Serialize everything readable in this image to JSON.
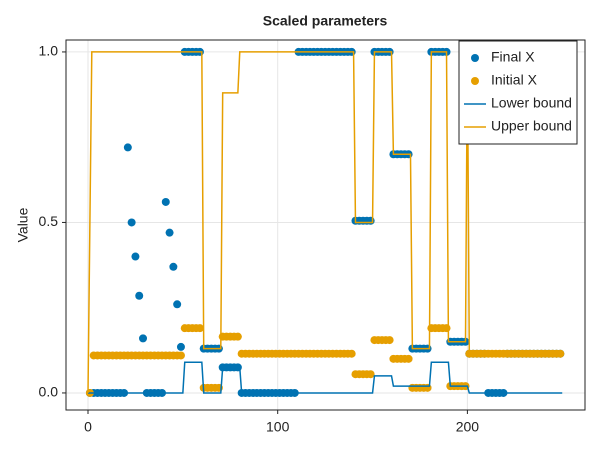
{
  "chart_data": {
    "type": "scatter",
    "title": "Scaled parameters",
    "ylabel": "Value",
    "xlim": [
      -11.6,
      262
    ],
    "ylim": [
      -0.05,
      1.035
    ],
    "xticks": [
      0,
      100,
      200
    ],
    "yticks": [
      {
        "value": 0,
        "label": "0.0"
      },
      {
        "value": 0.5,
        "label": "0.5"
      },
      {
        "value": 1,
        "label": "1.0"
      }
    ],
    "grid": true,
    "legend": "top-right",
    "series": [
      {
        "name": "Final X",
        "type": "scatter",
        "color": "#0072b2",
        "x": [
          1,
          3,
          5,
          7,
          9,
          11,
          13,
          15,
          17,
          19,
          21,
          23,
          25,
          27,
          29,
          31,
          33,
          35,
          37,
          39,
          41,
          43,
          45,
          47,
          49,
          51,
          53,
          55,
          57,
          59,
          61,
          63,
          65,
          67,
          69,
          71,
          73,
          75,
          77,
          79,
          81,
          83,
          85,
          87,
          89,
          91,
          93,
          95,
          97,
          99,
          101,
          103,
          105,
          107,
          109,
          111,
          113,
          115,
          117,
          119,
          121,
          123,
          125,
          127,
          129,
          131,
          133,
          135,
          137,
          139,
          141,
          143,
          145,
          147,
          149,
          151,
          153,
          155,
          157,
          159,
          161,
          163,
          165,
          167,
          169,
          171,
          173,
          175,
          177,
          179,
          181,
          183,
          185,
          187,
          189,
          191,
          193,
          195,
          197,
          199,
          201,
          203,
          205,
          207,
          209,
          211,
          213,
          215,
          217,
          219,
          221,
          223,
          225,
          227,
          229,
          231,
          233,
          235,
          237,
          239,
          241,
          243,
          245,
          247,
          249
        ],
        "values": [
          0,
          0,
          0,
          0,
          0,
          0,
          0,
          0,
          0,
          0,
          0.72,
          0.5,
          0.4,
          0.285,
          0.16,
          0,
          0,
          0,
          0,
          0,
          0.56,
          0.47,
          0.37,
          0.26,
          0.135,
          1,
          1,
          1,
          1,
          1,
          0.13,
          0.13,
          0.13,
          0.13,
          0.13,
          0.075,
          0.075,
          0.075,
          0.075,
          0.075,
          0,
          0,
          0,
          0,
          0,
          0,
          0,
          0,
          0,
          0,
          0,
          0,
          0,
          0,
          0,
          1,
          1,
          1,
          1,
          1,
          1,
          1,
          1,
          1,
          1,
          1,
          1,
          1,
          1,
          1,
          0.505,
          0.505,
          0.505,
          0.505,
          0.505,
          1,
          1,
          1,
          1,
          1,
          0.7,
          0.7,
          0.7,
          0.7,
          0.7,
          0.13,
          0.13,
          0.13,
          0.13,
          0.13,
          1,
          1,
          1,
          1,
          1,
          0.15,
          0.15,
          0.15,
          0.15,
          0.15,
          0.115,
          0.115,
          0.115,
          0.115,
          0.115,
          0,
          0,
          0,
          0,
          0,
          0.115,
          0.115,
          0.115,
          0.115,
          0.115,
          0.115,
          0.115,
          0.115,
          0.115,
          0.115,
          0.115,
          0.115,
          0.115,
          0.115,
          0.115
        ]
      },
      {
        "name": "Initial X",
        "type": "scatter",
        "color": "#e69f00",
        "x": [
          1,
          3,
          5,
          7,
          9,
          11,
          13,
          15,
          17,
          19,
          21,
          23,
          25,
          27,
          29,
          31,
          33,
          35,
          37,
          39,
          41,
          43,
          45,
          47,
          49,
          51,
          53,
          55,
          57,
          59,
          61,
          63,
          65,
          67,
          69,
          71,
          73,
          75,
          77,
          79,
          81,
          83,
          85,
          87,
          89,
          91,
          93,
          95,
          97,
          99,
          101,
          103,
          105,
          107,
          109,
          111,
          113,
          115,
          117,
          119,
          121,
          123,
          125,
          127,
          129,
          131,
          133,
          135,
          137,
          139,
          141,
          143,
          145,
          147,
          149,
          151,
          153,
          155,
          157,
          159,
          161,
          163,
          165,
          167,
          169,
          171,
          173,
          175,
          177,
          179,
          181,
          183,
          185,
          187,
          189,
          191,
          193,
          195,
          197,
          199,
          201,
          203,
          205,
          207,
          209,
          211,
          213,
          215,
          217,
          219,
          221,
          223,
          225,
          227,
          229,
          231,
          233,
          235,
          237,
          239,
          241,
          243,
          245,
          247,
          249
        ],
        "values": [
          0,
          0.11,
          0.11,
          0.11,
          0.11,
          0.11,
          0.11,
          0.11,
          0.11,
          0.11,
          0.11,
          0.11,
          0.11,
          0.11,
          0.11,
          0.11,
          0.11,
          0.11,
          0.11,
          0.11,
          0.11,
          0.11,
          0.11,
          0.11,
          0.11,
          0.19,
          0.19,
          0.19,
          0.19,
          0.19,
          0.015,
          0.015,
          0.015,
          0.015,
          0.015,
          0.165,
          0.165,
          0.165,
          0.165,
          0.165,
          0.115,
          0.115,
          0.115,
          0.115,
          0.115,
          0.115,
          0.115,
          0.115,
          0.115,
          0.115,
          0.115,
          0.115,
          0.115,
          0.115,
          0.115,
          0.115,
          0.115,
          0.115,
          0.115,
          0.115,
          0.115,
          0.115,
          0.115,
          0.115,
          0.115,
          0.115,
          0.115,
          0.115,
          0.115,
          0.115,
          0.055,
          0.055,
          0.055,
          0.055,
          0.055,
          0.155,
          0.155,
          0.155,
          0.155,
          0.155,
          0.1,
          0.1,
          0.1,
          0.1,
          0.1,
          0.015,
          0.015,
          0.015,
          0.015,
          0.015,
          0.19,
          0.19,
          0.19,
          0.19,
          0.19,
          0.02,
          0.02,
          0.02,
          0.02,
          0.02,
          0.115,
          0.115,
          0.115,
          0.115,
          0.115,
          0.115,
          0.115,
          0.115,
          0.115,
          0.115,
          0.115,
          0.115,
          0.115,
          0.115,
          0.115,
          0.115,
          0.115,
          0.115,
          0.115,
          0.115,
          0.115,
          0.115,
          0.115,
          0.115,
          0.115
        ]
      },
      {
        "name": "Lower bound",
        "type": "line",
        "color": "#0072b2",
        "x": [
          0,
          50,
          51,
          60,
          61,
          70,
          71,
          80,
          81,
          150,
          151,
          160,
          161,
          180,
          181,
          190,
          191,
          200,
          201,
          250
        ],
        "values": [
          0,
          0,
          0.09,
          0.09,
          0,
          0,
          0.075,
          0.075,
          0,
          0,
          0.05,
          0.05,
          0.02,
          0.02,
          0.09,
          0.09,
          0.02,
          0.02,
          0,
          0
        ]
      },
      {
        "name": "Upper bound",
        "type": "line",
        "color": "#e69f00",
        "x": [
          0,
          2,
          60,
          61,
          70,
          71,
          79,
          80,
          140,
          141,
          150,
          151,
          160,
          161,
          170,
          171,
          180,
          181,
          189,
          190,
          199,
          200,
          201,
          250
        ],
        "values": [
          0,
          1,
          1,
          0.13,
          0.13,
          0.88,
          0.88,
          1,
          1,
          0.5,
          0.5,
          1,
          1,
          0.7,
          0.7,
          0.13,
          0.13,
          1,
          1,
          0.15,
          0.15,
          1,
          0.115,
          0.115
        ]
      }
    ]
  }
}
